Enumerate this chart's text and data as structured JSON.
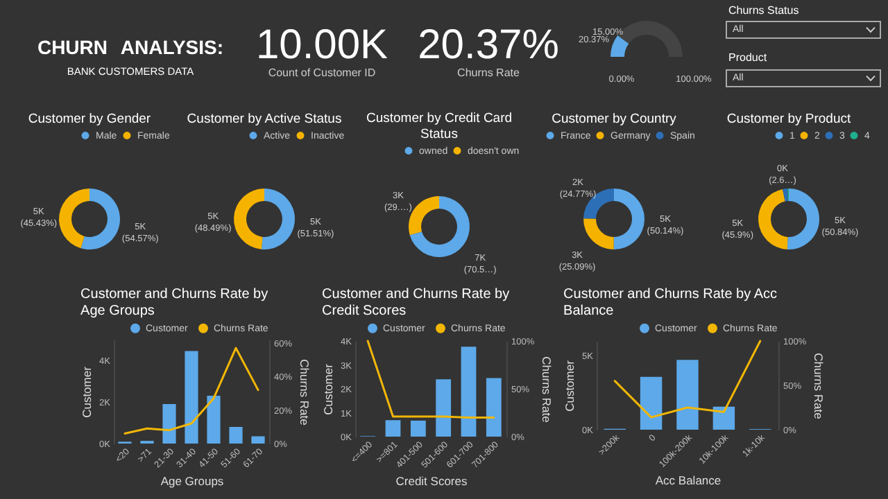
{
  "chart_data": [
    {
      "type": "other",
      "title": "CHURN ANALYSIS:",
      "subtitle": "BANK CUSTOMERS DATA",
      "annotations": [
        "10.00K",
        "Count of Customer ID",
        "20.37%",
        "Churns Rate",
        "Churns Status",
        "All",
        "Product",
        "All"
      ]
    },
    {
      "type": "donut",
      "categories": [
        null,
        null
      ],
      "values": [
        20.37,
        79.63
      ],
      "colors": [
        "#5DA9E9",
        "#444444"
      ],
      "value_labels": [
        "20.37%",
        null
      ],
      "annotations": [
        "15.00%",
        "0.00%",
        "100.00%"
      ]
    },
    {
      "type": "donut",
      "title": "Customer by Gender",
      "categories": [
        "Male",
        "Female"
      ],
      "values": [
        54.57,
        45.43
      ],
      "colors": [
        "#5DA9E9",
        "#F5B300"
      ],
      "value_labels": [
        "5K (54.57%)",
        "5K (45.43%)"
      ],
      "legend": "top"
    },
    {
      "type": "donut",
      "title": "Customer by Active Status",
      "categories": [
        "Active",
        "Inactive"
      ],
      "values": [
        51.51,
        48.49
      ],
      "colors": [
        "#5DA9E9",
        "#F5B300"
      ],
      "value_labels": [
        "5K (51.51%)",
        "5K (48.49%)"
      ],
      "legend": "top"
    },
    {
      "type": "donut",
      "title": "Customer by Credit Card Status",
      "categories": [
        "owned",
        "doesn't own"
      ],
      "values": [
        70.55,
        29.45
      ],
      "colors": [
        "#5DA9E9",
        "#F5B300"
      ],
      "value_labels": [
        "7K (70.5…)",
        "3K (29.…)"
      ],
      "legend": "top"
    },
    {
      "type": "donut",
      "title": "Customer by Country",
      "categories": [
        "France",
        "Germany",
        "Spain"
      ],
      "values": [
        50.14,
        25.09,
        24.77
      ],
      "colors": [
        "#5DA9E9",
        "#F5B300",
        "#2C6FB7"
      ],
      "value_labels": [
        "5K (50.14%)",
        "3K (25.09%)",
        "2K (24.77%)"
      ],
      "legend": "top"
    },
    {
      "type": "donut",
      "title": "Customer by Product",
      "categories": [
        "1",
        "2",
        "3",
        "4"
      ],
      "values": [
        50.84,
        45.9,
        2.66,
        0.6
      ],
      "colors": [
        "#5DA9E9",
        "#F5B300",
        "#2C6FB7",
        "#1FAE8F"
      ],
      "value_labels": [
        "5K (50.84%)",
        "5K (45.9%)",
        "0K (2.6…)",
        null
      ],
      "legend": "top"
    },
    {
      "type": "bar",
      "title": "Customer and Churns Rate by Age Groups",
      "categories": [
        "<20",
        ">71",
        "21-30",
        "31-40",
        "41-50",
        "51-60",
        "61-70"
      ],
      "xlabel": "Age Groups",
      "ylabel": "Customer",
      "y2label": "Churns Rate",
      "legend": "top right",
      "ylim": [
        0,
        5000
      ],
      "yticks": [
        {
          "value": 0,
          "label": "0K"
        },
        {
          "value": 2000,
          "label": "2K"
        },
        {
          "value": 4000,
          "label": "4K"
        }
      ],
      "y2lim": [
        0,
        62
      ],
      "y2ticks": [
        {
          "value": 0,
          "label": "0%"
        },
        {
          "value": 20,
          "label": "20%"
        },
        {
          "value": 40,
          "label": "40%"
        },
        {
          "value": 60,
          "label": "60%"
        }
      ],
      "series": [
        {
          "name": "Customer",
          "type": "bar",
          "color": "#5DA9E9",
          "values": [
            90,
            130,
            1900,
            4450,
            2300,
            800,
            350
          ]
        },
        {
          "name": "Churns Rate",
          "type": "line",
          "axis": "y2",
          "color": "#F2B705",
          "values": [
            6,
            9,
            8,
            12,
            27,
            57,
            32
          ]
        }
      ]
    },
    {
      "type": "bar",
      "title": "Customer and Churns Rate by Credit Scores",
      "categories": [
        "<=400",
        ">=801",
        "401-500",
        "501-600",
        "601-700",
        "701-800"
      ],
      "xlabel": "Credit Scores",
      "ylabel": "Customer",
      "y2label": "Churns Rate",
      "legend": "top right",
      "ylim": [
        0,
        4000
      ],
      "yticks": [
        {
          "value": 0,
          "label": "0K"
        },
        {
          "value": 1000,
          "label": "1K"
        },
        {
          "value": 2000,
          "label": "2K"
        },
        {
          "value": 3000,
          "label": "3K"
        },
        {
          "value": 4000,
          "label": "4K"
        }
      ],
      "y2lim": [
        0,
        100
      ],
      "y2ticks": [
        {
          "value": 0,
          "label": "0%"
        },
        {
          "value": 50,
          "label": "50%"
        },
        {
          "value": 100,
          "label": "100%"
        }
      ],
      "series": [
        {
          "name": "Customer",
          "type": "bar",
          "color": "#5DA9E9",
          "values": [
            20,
            690,
            670,
            2400,
            3760,
            2450
          ]
        },
        {
          "name": "Churns Rate",
          "type": "line",
          "axis": "y2",
          "color": "#F2B705",
          "values": [
            100,
            21,
            21,
            21,
            20,
            20
          ]
        }
      ]
    },
    {
      "type": "bar",
      "title": "Customer and Churns Rate by Acc Balance",
      "categories": [
        ">200k",
        "0",
        "100k-200k",
        "10k-100k",
        "1k-10k"
      ],
      "xlabel": "Acc Balance",
      "ylabel": "Customer",
      "y2label": "Churns Rate",
      "legend": "top right",
      "ylim": [
        0,
        6000
      ],
      "yticks": [
        {
          "value": 0,
          "label": "0K"
        },
        {
          "value": 5000,
          "label": "5K"
        }
      ],
      "y2lim": [
        0,
        100
      ],
      "y2ticks": [
        {
          "value": 0,
          "label": "0%"
        },
        {
          "value": 50,
          "label": "50%"
        },
        {
          "value": 100,
          "label": "100%"
        }
      ],
      "series": [
        {
          "name": "Customer",
          "type": "bar",
          "color": "#5DA9E9",
          "values": [
            60,
            3580,
            4720,
            1560,
            40
          ]
        },
        {
          "name": "Churns Rate",
          "type": "line",
          "axis": "y2",
          "color": "#F2B705",
          "values": [
            55,
            14,
            25,
            20,
            100
          ]
        }
      ]
    }
  ]
}
